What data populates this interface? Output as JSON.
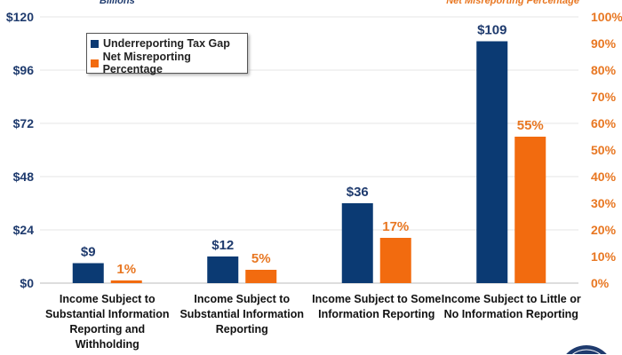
{
  "chart_data": {
    "type": "bar",
    "left_axis_title": "Billions",
    "right_axis_title": "Net Misreporting Percentage",
    "categories": [
      [
        "Income Subject to",
        "Substantial Information",
        "Reporting and",
        "Withholding"
      ],
      [
        "Income Subject to",
        "Substantial Information",
        "Reporting"
      ],
      [
        "Income Subject to Some",
        "Information Reporting"
      ],
      [
        "Income Subject to Little or",
        "No Information Reporting"
      ]
    ],
    "series": [
      {
        "name": "Underreporting Tax Gap",
        "axis": "left",
        "color": "#0b3a73",
        "values": [
          9,
          12,
          36,
          109
        ],
        "labels": [
          "$9",
          "$12",
          "$36",
          "$109"
        ]
      },
      {
        "name": "Net Misreporting Percentage",
        "axis": "right",
        "color": "#f26b0f",
        "values": [
          1,
          5,
          17,
          55
        ],
        "labels": [
          "1%",
          "5%",
          "17%",
          "55%"
        ]
      }
    ],
    "ylim_left": [
      0,
      120
    ],
    "yticks_left": [
      "$0",
      "$24",
      "$48",
      "$72",
      "$96",
      "$120"
    ],
    "ylim_right": [
      0,
      100
    ],
    "yticks_right": [
      "0%",
      "10%",
      "20%",
      "30%",
      "40%",
      "50%",
      "60%",
      "70%",
      "80%",
      "90%",
      "100%"
    ],
    "legend": {
      "placement": "top-left",
      "items": [
        "Underreporting Tax Gap",
        "Net Misreporting Percentage"
      ]
    },
    "grid": true
  }
}
